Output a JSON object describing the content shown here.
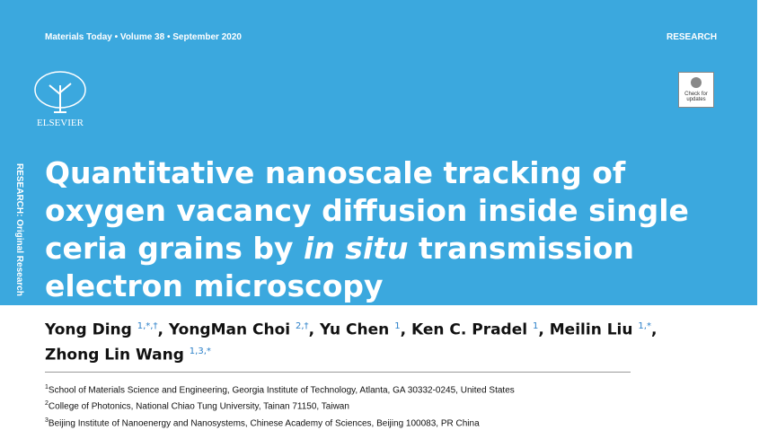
{
  "header": {
    "journal": "Materials Today • Volume 38 • September 2020",
    "section": "RESEARCH",
    "side_label": "RESEARCH: Original Research",
    "publisher": "ELSEVIER",
    "badge": "Check for updates"
  },
  "title": {
    "before": "Quantitative nanoscale tracking of oxygen vacancy diffusion inside single ceria grains by ",
    "italic": "in situ",
    "after": " transmission electron microscopy"
  },
  "authors": [
    {
      "name": "Yong Ding",
      "sup": "1,*,†",
      "sep": ","
    },
    {
      "name": "YongMan Choi",
      "sup": "2,†",
      "sep": ","
    },
    {
      "name": "Yu Chen",
      "sup": "1",
      "sep": ","
    },
    {
      "name": "Ken C. Pradel",
      "sup": "1",
      "sep": ","
    },
    {
      "name": "Meilin Liu",
      "sup": "1,*",
      "sep": ","
    },
    {
      "name": "Zhong Lin Wang",
      "sup": "1,3,*"
    }
  ],
  "affiliations": [
    {
      "sup": "1",
      "text": "School of Materials Science and Engineering, Georgia Institute of Technology, Atlanta, GA 30332-0245, United States"
    },
    {
      "sup": "2",
      "text": "College of Photonics, National Chiao Tung University, Tainan 71150, Taiwan"
    },
    {
      "sup": "3",
      "text": "Beijing Institute of Nanoenergy and Nanosystems, Chinese Academy of Sciences, Beijing 100083, PR China"
    }
  ]
}
